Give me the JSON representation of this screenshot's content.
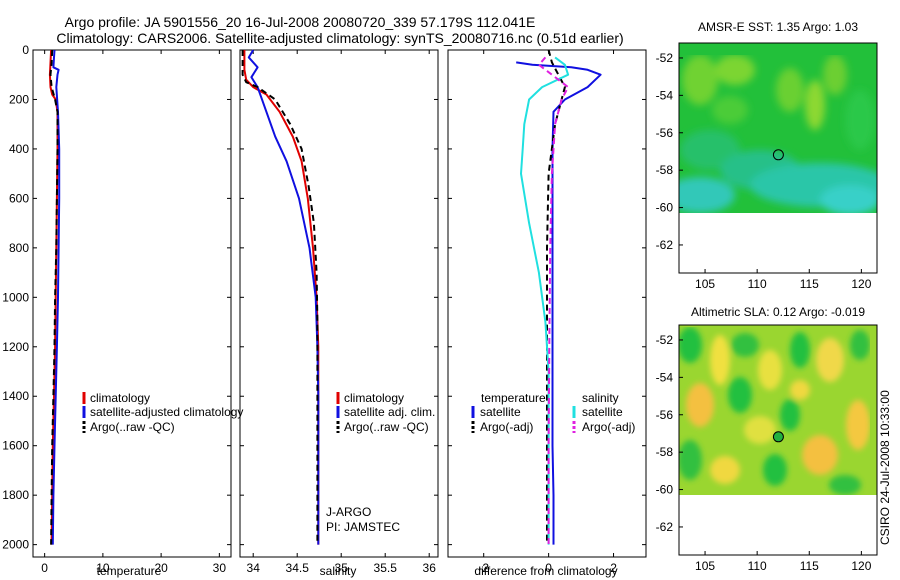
{
  "figure": {
    "title_line1": "Argo profile: JA 5901556_20 16-Jul-2008 20080720_339 57.179S 112.041E",
    "title_line2": "Climatology: CARS2006. Satellite-adjusted climatology: synTS_20080716.nc (0.51d earlier)",
    "side_label": "CSIRO 24-Jul-2008 10:33:00"
  },
  "colors": {
    "climatology": "#e00000",
    "satellite": "#1010e0",
    "argo": "#000000",
    "satellite_salinity": "#20e0e0",
    "argo_salinity_adj": "#e020e0"
  },
  "chart_data": [
    {
      "type": "line",
      "id": "temperature",
      "xlabel": "temperature",
      "ylabel": "",
      "xlim": [
        -2,
        32
      ],
      "ylim": [
        0,
        2050
      ],
      "xticks": [
        0,
        10,
        20,
        30
      ],
      "yticks": [
        0,
        200,
        400,
        600,
        800,
        1000,
        1200,
        1400,
        1600,
        1800,
        2000
      ],
      "y_reversed": true,
      "legend": [
        "climatology",
        "satellite-adjusted climatology",
        "Argo(..raw -QC)"
      ],
      "series": [
        {
          "name": "climatology",
          "style": "solid",
          "color": "climatology",
          "x": [
            1.1,
            1.0,
            0.9,
            1.0,
            1.3,
            1.9,
            2.2,
            2.2,
            2.1,
            2.0,
            1.9,
            1.8,
            1.6,
            1.4,
            1.3,
            1.2
          ],
          "y": [
            0,
            50,
            100,
            150,
            180,
            200,
            250,
            400,
            600,
            800,
            1000,
            1200,
            1400,
            1600,
            1800,
            2000
          ]
        },
        {
          "name": "satellite-adjusted climatology",
          "style": "solid",
          "color": "satellite",
          "x": [
            1.7,
            1.6,
            1.5,
            2.4,
            2.2,
            2.0,
            2.3,
            2.5,
            2.5,
            2.4,
            2.3,
            2.1,
            1.9,
            1.7,
            1.5,
            1.4
          ],
          "y": [
            0,
            30,
            70,
            80,
            100,
            150,
            250,
            400,
            600,
            800,
            1000,
            1200,
            1400,
            1600,
            1800,
            2000
          ]
        },
        {
          "name": "Argo(..raw -QC)",
          "style": "dashed",
          "color": "argo",
          "x": [
            1.3,
            1.2,
            1.0,
            1.2,
            1.8,
            2.2,
            2.2,
            2.1,
            2.0,
            1.8,
            1.7,
            1.5,
            1.3,
            1.2,
            1.1
          ],
          "y": [
            0,
            50,
            100,
            150,
            200,
            250,
            400,
            600,
            800,
            1000,
            1200,
            1400,
            1600,
            1800,
            2000
          ]
        }
      ]
    },
    {
      "type": "line",
      "id": "salinity",
      "xlabel": "salinity",
      "ylabel": "",
      "xlim": [
        33.85,
        36.1
      ],
      "ylim": [
        0,
        2050
      ],
      "xticks": [
        34,
        34.5,
        35,
        35.5,
        36
      ],
      "y_reversed": true,
      "legend": [
        "climatology",
        "satellite adj. clim.",
        "Argo(..raw -QC)"
      ],
      "annotations": [
        "J-ARGO",
        "PI: JAMSTEC"
      ],
      "series": [
        {
          "name": "climatology",
          "style": "solid",
          "color": "climatology",
          "x": [
            33.9,
            33.9,
            33.92,
            34.0,
            34.15,
            34.3,
            34.45,
            34.55,
            34.62,
            34.68,
            34.72,
            34.74,
            34.74,
            34.74,
            34.74,
            34.74
          ],
          "y": [
            0,
            80,
            120,
            150,
            180,
            250,
            350,
            450,
            600,
            800,
            1000,
            1200,
            1400,
            1600,
            1800,
            2000
          ]
        },
        {
          "name": "satellite adj. clim.",
          "style": "solid",
          "color": "satellite",
          "x": [
            34.0,
            33.95,
            34.05,
            33.98,
            34.05,
            34.15,
            34.25,
            34.38,
            34.52,
            34.64,
            34.71,
            34.73,
            34.74,
            34.74,
            34.74,
            34.74
          ],
          "y": [
            0,
            30,
            70,
            110,
            150,
            250,
            350,
            450,
            600,
            800,
            1000,
            1200,
            1400,
            1600,
            1800,
            2000
          ]
        },
        {
          "name": "Argo(..raw -QC)",
          "style": "dashed",
          "color": "argo",
          "x": [
            33.88,
            33.88,
            33.92,
            34.05,
            34.25,
            34.42,
            34.55,
            34.63,
            34.69,
            34.72,
            34.73,
            34.73,
            34.73,
            34.73,
            34.73
          ],
          "y": [
            0,
            100,
            130,
            150,
            200,
            300,
            400,
            550,
            700,
            900,
            1100,
            1300,
            1500,
            1700,
            2000
          ]
        }
      ]
    },
    {
      "type": "line",
      "id": "difference",
      "xlabel": "difference from climatology",
      "ylabel": "",
      "xlim": [
        -3.1,
        3.0
      ],
      "ylim": [
        0,
        2050
      ],
      "xticks": [
        -2,
        0,
        2
      ],
      "y_reversed": true,
      "legend_temperature_header": "temperature",
      "legend_salinity_header": "salinity",
      "legend": [
        "satellite",
        "Argo(-adj)",
        "satellite",
        "Argo(-adj)"
      ],
      "series": [
        {
          "name": "temperature satellite",
          "style": "solid",
          "color": "satellite",
          "x": [
            -1.0,
            -0.5,
            0.7,
            1.2,
            1.6,
            1.2,
            0.5,
            0.15,
            0.12,
            0.12,
            0.12,
            0.12,
            0.15,
            0.15
          ],
          "y": [
            50,
            60,
            70,
            80,
            100,
            150,
            200,
            250,
            400,
            800,
            1200,
            1600,
            1800,
            2000
          ]
        },
        {
          "name": "temperature Argo(-adj)",
          "style": "dashed",
          "color": "argo",
          "x": [
            0.0,
            0.1,
            0.3,
            0.5,
            0.4,
            0.2,
            0.0,
            -0.05,
            -0.05,
            -0.05,
            -0.05,
            -0.05,
            -0.05
          ],
          "y": [
            0,
            50,
            100,
            150,
            200,
            300,
            500,
            800,
            1000,
            1200,
            1400,
            1600,
            2000
          ]
        },
        {
          "name": "salinity satellite",
          "style": "solid",
          "color": "satellite_salinity",
          "x": [
            0.2,
            0.5,
            0.6,
            -0.2,
            -0.6,
            -0.75,
            -0.8,
            -0.85,
            -0.6,
            -0.3,
            -0.1,
            0.0,
            0.0
          ],
          "y": [
            30,
            60,
            100,
            150,
            200,
            300,
            400,
            500,
            700,
            900,
            1100,
            1300,
            2000
          ]
        },
        {
          "name": "salinity Argo(-adj)",
          "style": "dashed",
          "color": "argo_salinity_adj",
          "x": [
            -0.1,
            -0.3,
            0.1,
            0.6,
            0.4,
            0.2,
            0.1,
            0.05,
            0.02,
            0.0,
            0.0
          ],
          "y": [
            30,
            60,
            100,
            150,
            200,
            300,
            500,
            800,
            1200,
            1600,
            2000
          ]
        }
      ]
    },
    {
      "type": "heatmap",
      "id": "sst_map",
      "title": "AMSR-E SST: 1.35 Argo: 1.03",
      "xlim": [
        102.5,
        121.5
      ],
      "ylim": [
        -63.5,
        -51.2
      ],
      "xticks": [
        105,
        110,
        115,
        120
      ],
      "yticks": [
        -52,
        -54,
        -56,
        -58,
        -60,
        -62
      ],
      "data_southern_limit": -60,
      "marker": {
        "lon": 112.041,
        "lat": -57.179
      }
    },
    {
      "type": "heatmap",
      "id": "sla_map",
      "title": "Altimetric SLA: 0.12 Argo: -0.019",
      "xlim": [
        102.5,
        121.5
      ],
      "ylim": [
        -63.5,
        -51.2
      ],
      "xticks": [
        105,
        110,
        115,
        120
      ],
      "yticks": [
        -52,
        -54,
        -56,
        -58,
        -60,
        -62
      ],
      "data_southern_limit": -60,
      "marker": {
        "lon": 112.041,
        "lat": -57.179
      }
    }
  ]
}
